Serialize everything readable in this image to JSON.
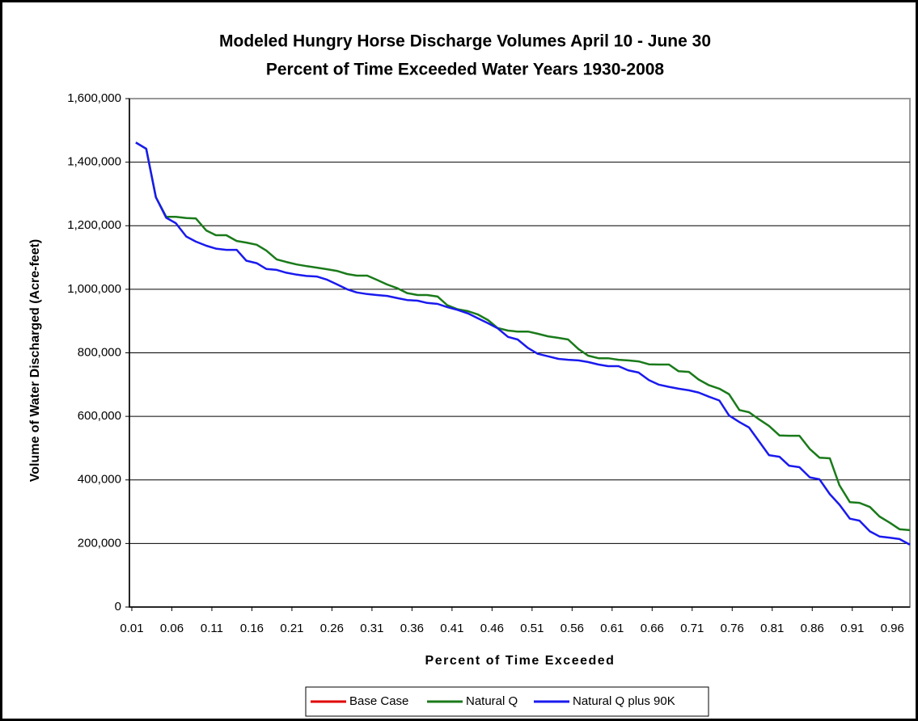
{
  "chart_data": {
    "type": "line",
    "title": "Modeled Hungry Horse Discharge Volumes April 10 - June 30",
    "subtitle": "Percent of Time Exceeded Water Years 1930-2008",
    "x_label": "Percent of Time Exceeded",
    "y_label": "Volume of Water Discharged (Acre-feet)",
    "x": [
      0.015,
      0.028,
      0.04,
      0.053,
      0.065,
      0.078,
      0.09,
      0.103,
      0.115,
      0.128,
      0.141,
      0.153,
      0.166,
      0.178,
      0.191,
      0.203,
      0.216,
      0.228,
      0.241,
      0.254,
      0.266,
      0.279,
      0.291,
      0.304,
      0.316,
      0.329,
      0.342,
      0.354,
      0.367,
      0.379,
      0.392,
      0.404,
      0.417,
      0.43,
      0.442,
      0.455,
      0.467,
      0.48,
      0.492,
      0.505,
      0.517,
      0.53,
      0.543,
      0.555,
      0.568,
      0.58,
      0.593,
      0.605,
      0.618,
      0.63,
      0.643,
      0.656,
      0.668,
      0.681,
      0.693,
      0.706,
      0.718,
      0.731,
      0.744,
      0.756,
      0.769,
      0.781,
      0.794,
      0.806,
      0.819,
      0.831,
      0.844,
      0.857,
      0.869,
      0.882,
      0.894,
      0.907,
      0.919,
      0.932,
      0.944,
      0.957,
      0.969,
      0.982
    ],
    "series": [
      {
        "name": "Base Case",
        "color": "#e00000",
        "values": [
          null,
          null,
          null,
          null,
          null,
          null,
          null,
          null,
          null,
          null,
          null,
          null,
          null,
          null,
          null,
          null,
          null,
          null,
          null,
          null,
          null,
          null,
          null,
          null,
          null,
          null,
          null,
          null,
          null,
          null,
          null,
          null,
          null,
          null,
          null,
          null,
          null,
          null,
          null,
          null,
          null,
          null,
          null,
          null,
          null,
          null,
          null,
          null,
          null,
          null,
          null,
          null,
          null,
          null,
          null,
          null,
          null,
          null,
          null,
          null,
          null,
          null,
          null,
          null,
          null,
          null,
          null,
          null,
          null,
          null,
          null,
          null,
          null,
          null,
          null,
          null,
          null,
          null
        ]
      },
      {
        "name": "Natural Q",
        "color": "#1a7a1a",
        "values": [
          1462000,
          1442000,
          1290000,
          1228000,
          1228000,
          1224000,
          1223000,
          1185000,
          1170000,
          1170000,
          1152000,
          1147000,
          1140000,
          1122000,
          1094000,
          1086000,
          1078000,
          1073000,
          1068000,
          1063000,
          1058000,
          1048000,
          1043000,
          1043000,
          1030000,
          1015000,
          1003000,
          988000,
          982000,
          982000,
          977000,
          950000,
          937000,
          931000,
          921000,
          903000,
          878000,
          870000,
          867000,
          867000,
          860000,
          852000,
          847000,
          842000,
          812000,
          791000,
          783000,
          783000,
          778000,
          776000,
          773000,
          764000,
          763000,
          763000,
          742000,
          740000,
          716000,
          698000,
          687000,
          670000,
          620000,
          613000,
          590000,
          570000,
          540000,
          539000,
          539000,
          497000,
          470000,
          468000,
          383000,
          330000,
          328000,
          315000,
          285000,
          265000,
          245000,
          242000
        ]
      },
      {
        "name": "Natural Q plus 90K",
        "color": "#1a1aee",
        "values": [
          1462000,
          1442000,
          1290000,
          1225000,
          1208000,
          1166000,
          1150000,
          1137000,
          1128000,
          1124000,
          1124000,
          1090000,
          1082000,
          1064000,
          1061000,
          1052000,
          1046000,
          1042000,
          1040000,
          1030000,
          1016000,
          1000000,
          990000,
          985000,
          982000,
          979000,
          972000,
          966000,
          964000,
          957000,
          954000,
          944000,
          935000,
          924000,
          909000,
          893000,
          877000,
          850000,
          842000,
          815000,
          797000,
          789000,
          781000,
          778000,
          776000,
          771000,
          763000,
          758000,
          758000,
          745000,
          738000,
          714000,
          700000,
          693000,
          687000,
          682000,
          675000,
          662000,
          650000,
          603000,
          582000,
          565000,
          520000,
          478000,
          473000,
          445000,
          440000,
          408000,
          402000,
          355000,
          322000,
          278000,
          272000,
          238000,
          222000,
          218000,
          214000,
          196000
        ]
      }
    ],
    "xlim": [
      0.007,
      0.982
    ],
    "xticks": [
      0.01,
      0.06,
      0.11,
      0.16,
      0.21,
      0.26,
      0.31,
      0.36,
      0.41,
      0.46,
      0.51,
      0.56,
      0.61,
      0.66,
      0.71,
      0.76,
      0.81,
      0.86,
      0.91,
      0.96
    ],
    "ylim": [
      0,
      1600000
    ],
    "yticks": [
      0,
      {
        "value": 200000,
        "label": "200,000"
      },
      {
        "value": 400000,
        "label": "400,000"
      },
      {
        "value": 600000,
        "label": "600,000"
      },
      {
        "value": 800000,
        "label": "800,000"
      },
      {
        "value": 1000000,
        "label": "1,000,000"
      },
      {
        "value": 1200000,
        "label": "1,200,000"
      },
      {
        "value": 1400000,
        "label": "1,400,000"
      },
      {
        "value": 1600000,
        "label": "1,600,000"
      }
    ],
    "grid": true,
    "legend": "bottom"
  }
}
